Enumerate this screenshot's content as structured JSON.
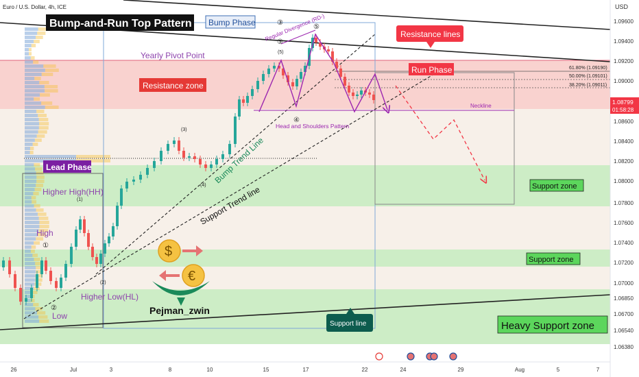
{
  "header": {
    "symbol_line": "Euro / U.S. Dollar, 4h, ICE",
    "currency": "USD"
  },
  "price": {
    "current": "1.08799",
    "countdown": "01:58:28"
  },
  "colors": {
    "resistance_zone": "#f28b82",
    "support_zone": "#b7e1b0",
    "bull": "#26a69a",
    "bear": "#ef5350",
    "pink": "#f06292",
    "purple": "#9c27b0",
    "price_tag": "#f23645"
  },
  "chart_data": {
    "type": "candlestick",
    "y_axis": {
      "ticks": [
        "1.09600",
        "1.09400",
        "1.09200",
        "1.09000",
        "1.08800",
        "1.08600",
        "1.08400",
        "1.08200",
        "1.08000",
        "1.07800",
        "1.07600",
        "1.07400",
        "1.07200",
        "1.07000",
        "1.06850",
        "1.06700",
        "1.06540",
        "1.06380"
      ],
      "range": [
        1.0628,
        1.0974
      ]
    },
    "x_axis": {
      "ticks": [
        "26",
        "Jul",
        "3",
        "8",
        "10",
        "15",
        "17",
        "22",
        "24",
        "29",
        "Aug",
        "5",
        "7"
      ]
    },
    "fib_levels": [
      "61.80% (1.09190)",
      "50.00% (1.09101)",
      "38.20% (1.09011)"
    ],
    "zones": [
      {
        "label": "Resistance zone",
        "from": 1.0888,
        "to": 1.0922
      },
      {
        "label": "Support zone",
        "from": 1.078,
        "to": 1.0816
      },
      {
        "label": "Support zone",
        "from": 1.0712,
        "to": 1.073
      },
      {
        "label": "Heavy Support zone",
        "from": 1.065,
        "to": 1.069
      }
    ],
    "annotations": {
      "title": "Bump-and-Run Top Pattern",
      "bump_phase": "Bump Phase",
      "run_phase": "Run Phase",
      "lead_phase": "Lead Phase",
      "resistance_lines": "Resistance lines",
      "resistance_zone": "Resistance zone",
      "support_zone": "Support zone",
      "heavy_support_zone": "Heavy Support zone",
      "support_line": "Support line",
      "yearly_pivot": "Yearly Pivot Point",
      "regular_divergence": "Regular Divergence (RD-)",
      "neckline": "Neckline",
      "head_shoulders": "Head and Shoulders Pattern",
      "bump_trend_line": "Bump Trend Line",
      "support_trend_line": "Support Trend line",
      "higher_high": "Higher High(HH)",
      "higher_low": "Higher Low(HL)",
      "high": "High",
      "low": "Low",
      "brand": "Pejman_zwin",
      "wave_labels": [
        "①",
        "②",
        "(1)",
        "(2)",
        "(3)",
        "(4)",
        "(5)",
        "④",
        "⑤",
        "⑤",
        "③"
      ]
    }
  }
}
